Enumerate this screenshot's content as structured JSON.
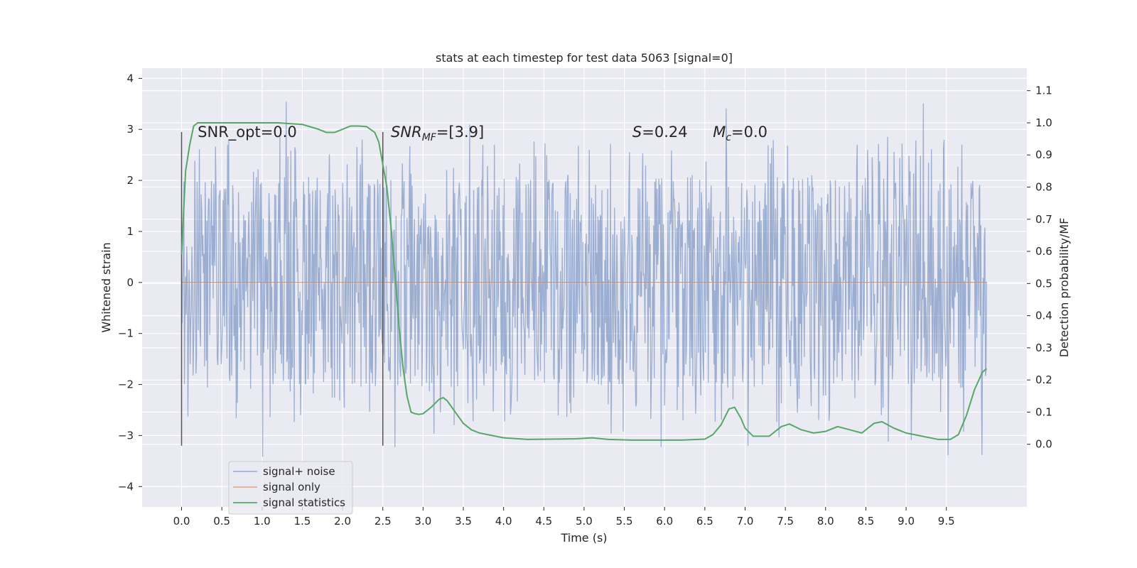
{
  "chart_data": {
    "type": "line",
    "title": "stats at each timestep for test data 5063 [signal=0]",
    "xlabel": "Time (s)",
    "ylabel": "Whitened strain",
    "y2label": "Detection probability/MF",
    "xlim": [
      -0.49,
      10.5
    ],
    "ylim": [
      -4.4,
      4.2
    ],
    "y2lim": [
      -0.195,
      1.17
    ],
    "x_ticks": [
      "0.0",
      "0.5",
      "1.0",
      "1.5",
      "2.0",
      "2.5",
      "3.0",
      "3.5",
      "4.0",
      "4.5",
      "5.0",
      "5.5",
      "6.0",
      "6.5",
      "7.0",
      "7.5",
      "8.0",
      "8.5",
      "9.0",
      "9.5"
    ],
    "y_ticks": [
      "4",
      "3",
      "2",
      "1",
      "0",
      "−1",
      "−2",
      "−3",
      "−4"
    ],
    "y2_ticks": [
      "1.1",
      "1.0",
      "0.9",
      "0.8",
      "0.7",
      "0.6",
      "0.5",
      "0.4",
      "0.3",
      "0.2",
      "0.1",
      "0.0"
    ],
    "grid": true,
    "legend_position": "lower-left",
    "vlines": [
      0.0,
      2.5
    ],
    "vline_range": [
      -3.2,
      2.95
    ],
    "annotations": [
      {
        "text": "SNR_opt=0.0",
        "x": 0.2,
        "y": 2.95,
        "italic": false
      },
      {
        "text": "SNR_MF=[3.9]",
        "x": 2.6,
        "y": 2.95,
        "italic": true
      },
      {
        "text": "S=0.24",
        "x": 5.6,
        "y": 2.95,
        "italic": true
      },
      {
        "text": "M_c=0.0",
        "x": 6.6,
        "y": 2.95,
        "italic": true
      }
    ],
    "series": [
      {
        "name": "signal+ noise",
        "color": "#4c72b0",
        "axis": "left",
        "style": "noise",
        "x_range": [
          0.0,
          10.0
        ],
        "envelope": {
          "typical_upper": 1.8,
          "typical_lower": -1.8,
          "peak_upper": 3.8,
          "peak_lower": -3.45
        }
      },
      {
        "name": "signal only",
        "color": "#dd8452",
        "axis": "left",
        "x": [
          0.0,
          10.0
        ],
        "y": [
          0.0,
          0.0
        ]
      },
      {
        "name": "signal statistics",
        "color": "#55a868",
        "axis": "right",
        "x": [
          0.0,
          0.05,
          0.1,
          0.15,
          0.2,
          0.4,
          0.8,
          1.2,
          1.5,
          1.7,
          1.8,
          1.9,
          2.0,
          2.1,
          2.2,
          2.3,
          2.4,
          2.45,
          2.5,
          2.55,
          2.6,
          2.65,
          2.7,
          2.75,
          2.8,
          2.85,
          2.9,
          2.95,
          3.0,
          3.1,
          3.2,
          3.25,
          3.3,
          3.4,
          3.5,
          3.6,
          3.7,
          3.8,
          4.0,
          4.3,
          4.6,
          4.9,
          5.1,
          5.3,
          5.6,
          5.9,
          6.2,
          6.5,
          6.6,
          6.7,
          6.8,
          6.87,
          6.95,
          7.0,
          7.1,
          7.3,
          7.45,
          7.55,
          7.7,
          7.85,
          8.0,
          8.15,
          8.3,
          8.45,
          8.6,
          8.7,
          8.85,
          9.0,
          9.2,
          9.4,
          9.55,
          9.65,
          9.75,
          9.85,
          9.95,
          10.0
        ],
        "y": [
          0.59,
          0.85,
          0.93,
          0.99,
          1.0,
          1.0,
          1.0,
          1.0,
          0.995,
          0.98,
          0.97,
          0.97,
          0.98,
          0.99,
          0.99,
          0.988,
          0.97,
          0.94,
          0.87,
          0.8,
          0.68,
          0.53,
          0.37,
          0.24,
          0.15,
          0.1,
          0.095,
          0.093,
          0.095,
          0.115,
          0.14,
          0.145,
          0.135,
          0.1,
          0.065,
          0.045,
          0.035,
          0.03,
          0.02,
          0.015,
          0.016,
          0.017,
          0.02,
          0.015,
          0.013,
          0.013,
          0.013,
          0.016,
          0.03,
          0.06,
          0.11,
          0.115,
          0.08,
          0.05,
          0.025,
          0.025,
          0.055,
          0.063,
          0.045,
          0.035,
          0.04,
          0.055,
          0.045,
          0.035,
          0.065,
          0.07,
          0.05,
          0.035,
          0.025,
          0.015,
          0.015,
          0.03,
          0.09,
          0.17,
          0.225,
          0.235
        ]
      }
    ]
  }
}
